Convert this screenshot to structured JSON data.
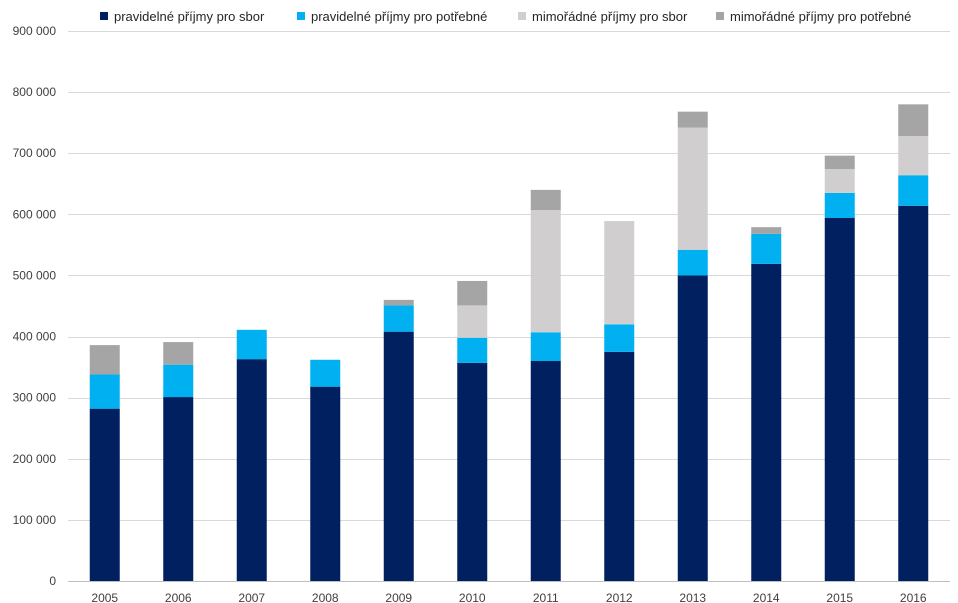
{
  "chart_data": {
    "type": "bar",
    "stacked": true,
    "title": "",
    "xlabel": "",
    "ylabel": "",
    "grid": true,
    "legend_position": "top",
    "ylim": [
      0,
      900000
    ],
    "y_ticks": [
      0,
      100000,
      200000,
      300000,
      400000,
      500000,
      600000,
      700000,
      800000,
      900000
    ],
    "y_tick_labels": [
      "0",
      "100 000",
      "200 000",
      "300 000",
      "400 000",
      "500 000",
      "600 000",
      "700 000",
      "800 000",
      "900 000"
    ],
    "categories": [
      "2005",
      "2006",
      "2007",
      "2008",
      "2009",
      "2010",
      "2011",
      "2012",
      "2013",
      "2014",
      "2015",
      "2016"
    ],
    "series": [
      {
        "name": "pravidelné příjmy pro sbor",
        "color": "#002060",
        "values": [
          282000,
          301000,
          363000,
          318000,
          408000,
          357000,
          360000,
          375000,
          500000,
          519000,
          594000,
          614000
        ]
      },
      {
        "name": "pravidelné příjmy pro potřebné",
        "color": "#00B0F0",
        "values": [
          56000,
          53000,
          48000,
          44000,
          43000,
          41000,
          47000,
          45000,
          42000,
          49000,
          41000,
          50000
        ]
      },
      {
        "name": "mimořádné příjmy pro sbor",
        "color": "#D0CECE",
        "values": [
          0,
          0,
          0,
          0,
          0,
          53000,
          200000,
          169000,
          200000,
          0,
          39000,
          64000
        ]
      },
      {
        "name": "mimořádné příjmy pro potřebné",
        "color": "#A5A5A5",
        "values": [
          48000,
          37000,
          0,
          0,
          9000,
          40000,
          33000,
          0,
          26000,
          11000,
          22000,
          52000
        ]
      }
    ]
  },
  "colors": {
    "grid": "#D9D9D9",
    "axis": "#BFBFBF",
    "text": "#404040"
  }
}
